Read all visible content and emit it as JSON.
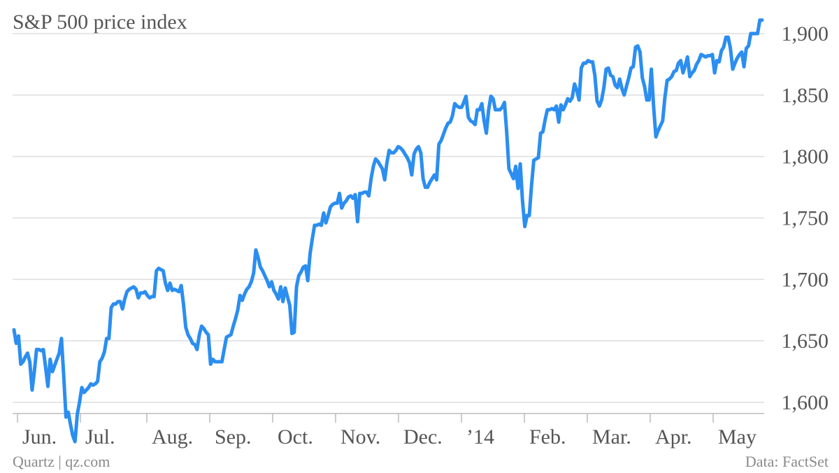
{
  "chart_data": {
    "type": "line",
    "title": "S&P 500 price index",
    "source_left": "Quartz | qz.com",
    "source_right": "Data: FactSet",
    "ylim": [
      1580,
      1915
    ],
    "yticks": [
      1600,
      1650,
      1700,
      1750,
      1800,
      1850,
      1900
    ],
    "ytick_labels": [
      "1,600",
      "1,650",
      "1,700",
      "1,750",
      "1,800",
      "1,850",
      "1,900"
    ],
    "xticks": [
      "Jun.",
      "Jul.",
      "Aug.",
      "Sep.",
      "Oct.",
      "Nov.",
      "Dec.",
      "’14",
      "Feb.",
      "Mar.",
      "Apr.",
      "May"
    ],
    "grid": true,
    "color": "#2b8ef0",
    "series": [
      {
        "values": [
          1659,
          1648,
          1654,
          1631,
          1633,
          1637,
          1640,
          1633,
          1610,
          1625,
          1643,
          1643,
          1642,
          1643,
          1628,
          1613,
          1635,
          1625,
          1630,
          1635,
          1640,
          1652,
          1622,
          1588,
          1592,
          1582,
          1573,
          1568,
          1590,
          1600,
          1612,
          1608,
          1610,
          1612,
          1615,
          1614,
          1615,
          1617,
          1633,
          1636,
          1641,
          1652,
          1652,
          1677,
          1680,
          1680,
          1682,
          1682,
          1676,
          1684,
          1690,
          1692,
          1693,
          1694,
          1692,
          1685,
          1689,
          1689,
          1690,
          1687,
          1685,
          1686,
          1686,
          1707,
          1709,
          1708,
          1707,
          1697,
          1691,
          1697,
          1691,
          1692,
          1691,
          1690,
          1695,
          1680,
          1661,
          1655,
          1652,
          1648,
          1647,
          1643,
          1655,
          1662,
          1660,
          1657,
          1655,
          1631,
          1635,
          1633,
          1633,
          1633,
          1633,
          1643,
          1653,
          1654,
          1655,
          1662,
          1668,
          1675,
          1687,
          1683,
          1688,
          1692,
          1694,
          1698,
          1705,
          1724,
          1718,
          1710,
          1707,
          1703,
          1699,
          1694,
          1698,
          1691,
          1688,
          1684,
          1694,
          1682,
          1693,
          1686,
          1679,
          1656,
          1657,
          1694,
          1703,
          1706,
          1710,
          1711,
          1699,
          1721,
          1733,
          1744,
          1744,
          1745,
          1744,
          1754,
          1746,
          1752,
          1759,
          1761,
          1762,
          1762,
          1770,
          1758,
          1762,
          1764,
          1767,
          1768,
          1766,
          1769,
          1747,
          1770,
          1770,
          1771,
          1771,
          1768,
          1782,
          1792,
          1798,
          1796,
          1793,
          1790,
          1781,
          1795,
          1805,
          1803,
          1803,
          1805,
          1808,
          1807,
          1805,
          1802,
          1799,
          1795,
          1785,
          1802,
          1806,
          1808,
          1803,
          1782,
          1775,
          1775,
          1779,
          1782,
          1785,
          1781,
          1810,
          1813,
          1818,
          1823,
          1827,
          1828,
          1833,
          1843,
          1841,
          1840,
          1840,
          1844,
          1849,
          1832,
          1829,
          1828,
          1826,
          1838,
          1838,
          1843,
          1829,
          1819,
          1838,
          1849,
          1847,
          1838,
          1838,
          1838,
          1840,
          1844,
          1820,
          1790,
          1786,
          1782,
          1792,
          1774,
          1794,
          1764,
          1743,
          1752,
          1752,
          1777,
          1797,
          1798,
          1799,
          1819,
          1820,
          1830,
          1838,
          1838,
          1839,
          1838,
          1841,
          1828,
          1842,
          1838,
          1842,
          1847,
          1845,
          1848,
          1859,
          1854,
          1846,
          1872,
          1876,
          1876,
          1878,
          1877,
          1877,
          1866,
          1845,
          1841,
          1846,
          1856,
          1871,
          1872,
          1866,
          1865,
          1858,
          1856,
          1863,
          1855,
          1850,
          1857,
          1864,
          1872,
          1873,
          1889,
          1890,
          1885,
          1864,
          1857,
          1846,
          1846,
          1871,
          1841,
          1816,
          1821,
          1825,
          1829,
          1848,
          1862,
          1863,
          1865,
          1869,
          1870,
          1876,
          1878,
          1868,
          1874,
          1881,
          1865,
          1868,
          1870,
          1875,
          1878,
          1883,
          1882,
          1881,
          1882,
          1882,
          1883,
          1868,
          1878,
          1877,
          1886,
          1889,
          1897,
          1897,
          1888,
          1871,
          1876,
          1880,
          1883,
          1885,
          1873,
          1888,
          1890,
          1900,
          1900,
          1900,
          1900,
          1911,
          1911
        ]
      }
    ]
  }
}
